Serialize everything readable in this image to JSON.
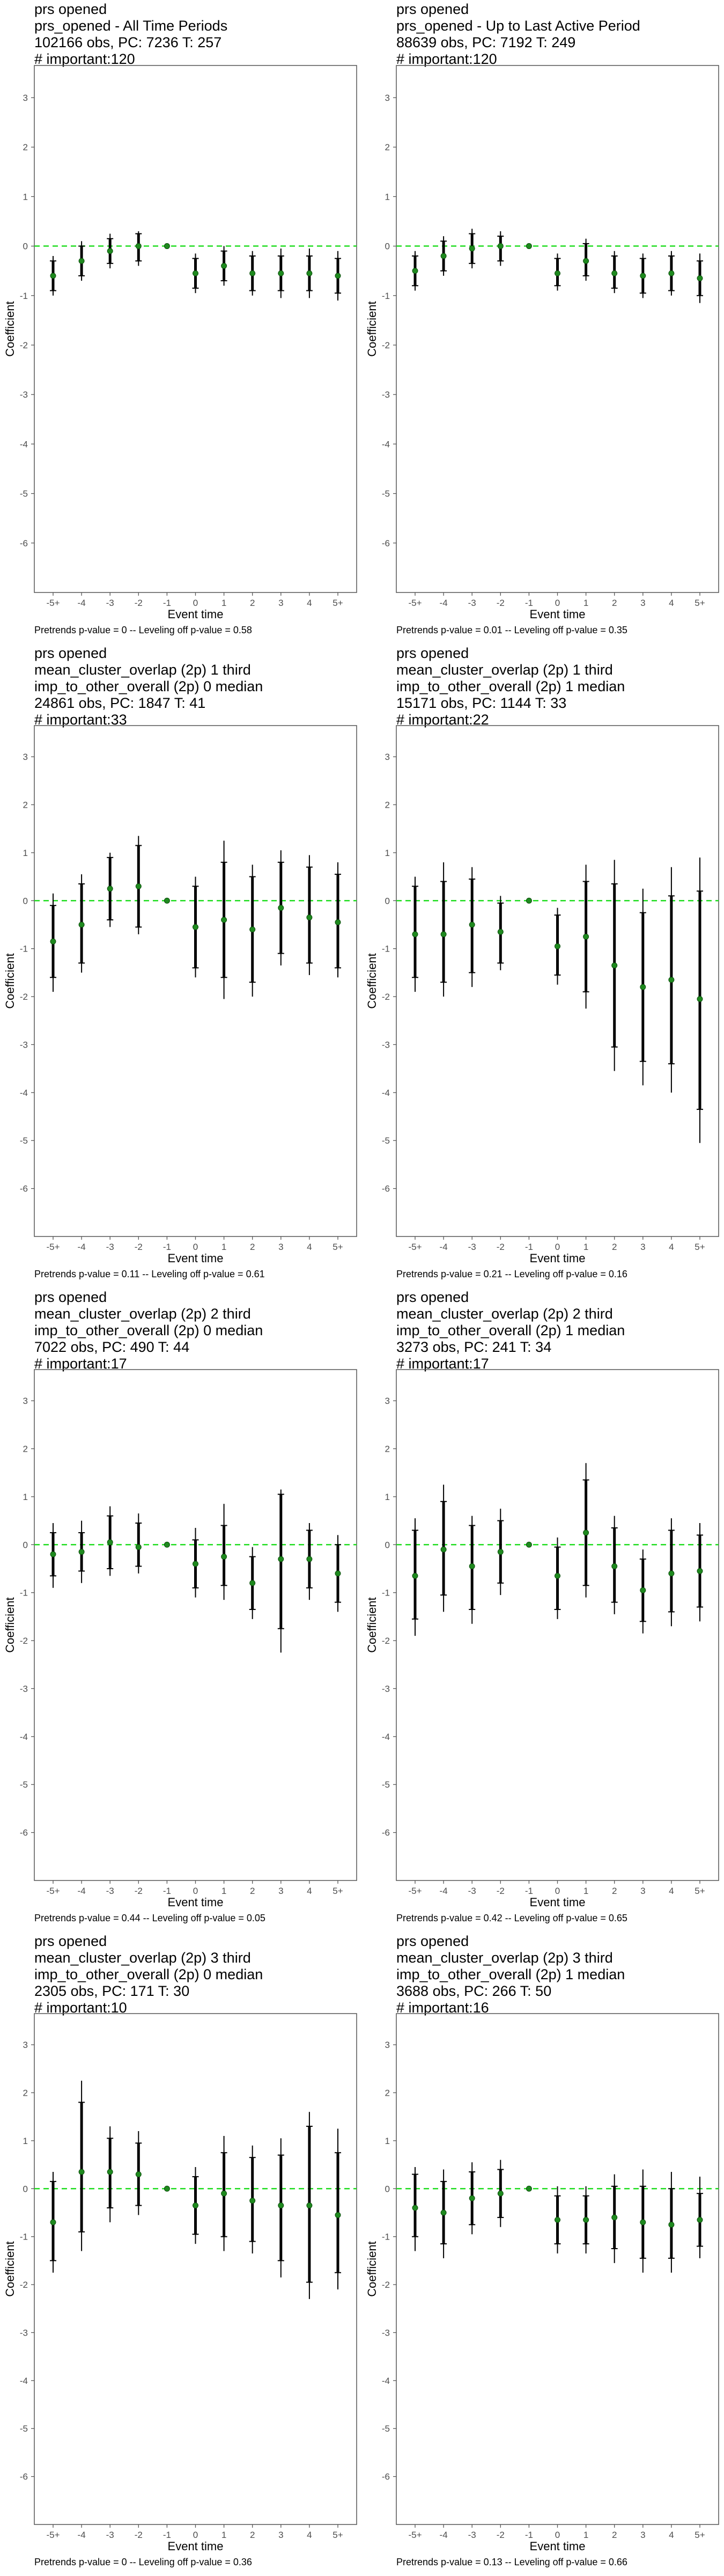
{
  "chart_data": [
    {
      "type": "scatter",
      "titles": [
        "prs opened",
        "prs_opened - All Time Periods",
        "102166 obs, PC: 7236 T: 257",
        "# important:120"
      ],
      "footer": "Pretrends p-value = 0 -- Leveling off p-value = 0.58",
      "xlabel": "Event time",
      "ylabel": "Coefficient",
      "categories": [
        "-5+",
        "-4",
        "-3",
        "-2",
        "-1",
        "0",
        "1",
        "2",
        "3",
        "4",
        "5+"
      ],
      "yticks": [
        -6,
        -5,
        -4,
        -3,
        -2,
        -1,
        0,
        1,
        2,
        3
      ],
      "ylim": [
        -7,
        3.65
      ],
      "estimate": [
        -0.6,
        -0.3,
        -0.1,
        0.0,
        0.0,
        -0.55,
        -0.4,
        -0.55,
        -0.55,
        -0.55,
        -0.6
      ],
      "ci90": [
        [
          -0.9,
          -0.3
        ],
        [
          -0.6,
          0.0
        ],
        [
          -0.35,
          0.15
        ],
        [
          -0.3,
          0.25
        ],
        null,
        [
          -0.85,
          -0.25
        ],
        [
          -0.7,
          -0.1
        ],
        [
          -0.9,
          -0.2
        ],
        [
          -0.9,
          -0.2
        ],
        [
          -0.9,
          -0.2
        ],
        [
          -0.95,
          -0.25
        ]
      ],
      "ci95": [
        [
          -1.0,
          -0.2
        ],
        [
          -0.7,
          0.1
        ],
        [
          -0.45,
          0.25
        ],
        [
          -0.4,
          0.3
        ],
        null,
        [
          -0.95,
          -0.15
        ],
        [
          -0.8,
          0.0
        ],
        [
          -1.0,
          -0.1
        ],
        [
          -1.05,
          -0.05
        ],
        [
          -1.05,
          -0.05
        ],
        [
          -1.1,
          -0.1
        ]
      ]
    },
    {
      "type": "scatter",
      "titles": [
        "prs opened",
        "prs_opened - Up to Last Active Period",
        "88639 obs, PC: 7192 T: 249",
        "# important:120"
      ],
      "footer": "Pretrends p-value = 0.01 -- Leveling off p-value = 0.35",
      "xlabel": "Event time",
      "ylabel": "Coefficient",
      "categories": [
        "-5+",
        "-4",
        "-3",
        "-2",
        "-1",
        "0",
        "1",
        "2",
        "3",
        "4",
        "5+"
      ],
      "yticks": [
        -6,
        -5,
        -4,
        -3,
        -2,
        -1,
        0,
        1,
        2,
        3
      ],
      "ylim": [
        -7,
        3.65
      ],
      "estimate": [
        -0.5,
        -0.2,
        -0.05,
        0.0,
        0.0,
        -0.55,
        -0.3,
        -0.55,
        -0.6,
        -0.55,
        -0.65
      ],
      "ci90": [
        [
          -0.8,
          -0.2
        ],
        [
          -0.5,
          0.1
        ],
        [
          -0.35,
          0.25
        ],
        [
          -0.3,
          0.2
        ],
        null,
        [
          -0.8,
          -0.25
        ],
        [
          -0.6,
          0.05
        ],
        [
          -0.85,
          -0.2
        ],
        [
          -0.95,
          -0.25
        ],
        [
          -0.9,
          -0.2
        ],
        [
          -1.0,
          -0.3
        ]
      ],
      "ci95": [
        [
          -0.9,
          -0.1
        ],
        [
          -0.6,
          0.2
        ],
        [
          -0.45,
          0.35
        ],
        [
          -0.4,
          0.3
        ],
        null,
        [
          -0.9,
          -0.15
        ],
        [
          -0.7,
          0.15
        ],
        [
          -0.95,
          -0.1
        ],
        [
          -1.05,
          -0.15
        ],
        [
          -1.0,
          -0.1
        ],
        [
          -1.15,
          -0.15
        ]
      ]
    },
    {
      "type": "scatter",
      "titles": [
        "prs opened",
        "mean_cluster_overlap (2p) 1 third",
        "imp_to_other_overall (2p) 0 median",
        "24861 obs, PC: 1847 T: 41",
        "# important:33"
      ],
      "footer": "Pretrends p-value = 0.11 -- Leveling off p-value = 0.61",
      "xlabel": "Event time",
      "ylabel": "Coefficient",
      "categories": [
        "-5+",
        "-4",
        "-3",
        "-2",
        "-1",
        "0",
        "1",
        "2",
        "3",
        "4",
        "5+"
      ],
      "yticks": [
        -6,
        -5,
        -4,
        -3,
        -2,
        -1,
        0,
        1,
        2,
        3
      ],
      "ylim": [
        -7,
        3.65
      ],
      "estimate": [
        -0.85,
        -0.5,
        0.25,
        0.3,
        0.0,
        -0.55,
        -0.4,
        -0.6,
        -0.15,
        -0.35,
        -0.45
      ],
      "ci90": [
        [
          -1.6,
          -0.1
        ],
        [
          -1.3,
          0.35
        ],
        [
          -0.4,
          0.9
        ],
        [
          -0.55,
          1.15
        ],
        null,
        [
          -1.4,
          0.3
        ],
        [
          -1.6,
          0.8
        ],
        [
          -1.7,
          0.5
        ],
        [
          -1.1,
          0.8
        ],
        [
          -1.3,
          0.7
        ],
        [
          -1.4,
          0.55
        ]
      ],
      "ci95": [
        [
          -1.9,
          0.15
        ],
        [
          -1.5,
          0.55
        ],
        [
          -0.55,
          1.0
        ],
        [
          -0.7,
          1.35
        ],
        null,
        [
          -1.6,
          0.5
        ],
        [
          -2.05,
          1.25
        ],
        [
          -2.0,
          0.75
        ],
        [
          -1.35,
          1.05
        ],
        [
          -1.55,
          0.95
        ],
        [
          -1.6,
          0.8
        ]
      ]
    },
    {
      "type": "scatter",
      "titles": [
        "prs opened",
        "mean_cluster_overlap (2p) 1 third",
        "imp_to_other_overall (2p) 1 median",
        "15171 obs, PC: 1144 T: 33",
        "# important:22"
      ],
      "footer": "Pretrends p-value = 0.21 -- Leveling off p-value = 0.16",
      "xlabel": "Event time",
      "ylabel": "Coefficient",
      "categories": [
        "-5+",
        "-4",
        "-3",
        "-2",
        "-1",
        "0",
        "1",
        "2",
        "3",
        "4",
        "5+"
      ],
      "yticks": [
        -6,
        -5,
        -4,
        -3,
        -2,
        -1,
        0,
        1,
        2,
        3
      ],
      "ylim": [
        -7,
        3.65
      ],
      "estimate": [
        -0.7,
        -0.7,
        -0.5,
        -0.65,
        0.0,
        -0.95,
        -0.75,
        -1.35,
        -1.8,
        -1.65,
        -2.05
      ],
      "ci90": [
        [
          -1.6,
          0.3
        ],
        [
          -1.7,
          0.4
        ],
        [
          -1.5,
          0.45
        ],
        [
          -1.3,
          -0.05
        ],
        null,
        [
          -1.55,
          -0.3
        ],
        [
          -1.9,
          0.4
        ],
        [
          -3.05,
          0.35
        ],
        [
          -3.35,
          -0.25
        ],
        [
          -3.4,
          0.1
        ],
        [
          -4.35,
          0.2
        ]
      ],
      "ci95": [
        [
          -1.9,
          0.5
        ],
        [
          -2.0,
          0.8
        ],
        [
          -1.8,
          0.7
        ],
        [
          -1.45,
          0.1
        ],
        null,
        [
          -1.75,
          -0.15
        ],
        [
          -2.25,
          0.75
        ],
        [
          -3.55,
          0.85
        ],
        [
          -3.85,
          0.25
        ],
        [
          -4.0,
          0.7
        ],
        [
          -5.05,
          0.9
        ]
      ]
    },
    {
      "type": "scatter",
      "titles": [
        "prs opened",
        "mean_cluster_overlap (2p) 2 third",
        "imp_to_other_overall (2p) 0 median",
        "7022 obs, PC: 490 T: 44",
        "# important:17"
      ],
      "footer": "Pretrends p-value = 0.44 -- Leveling off p-value = 0.05",
      "xlabel": "Event time",
      "ylabel": "Coefficient",
      "categories": [
        "-5+",
        "-4",
        "-3",
        "-2",
        "-1",
        "0",
        "1",
        "2",
        "3",
        "4",
        "5+"
      ],
      "yticks": [
        -6,
        -5,
        -4,
        -3,
        -2,
        -1,
        0,
        1,
        2,
        3
      ],
      "ylim": [
        -7,
        3.65
      ],
      "estimate": [
        -0.2,
        -0.15,
        0.05,
        -0.05,
        0.0,
        -0.4,
        -0.25,
        -0.8,
        -0.3,
        -0.3,
        -0.6
      ],
      "ci90": [
        [
          -0.65,
          0.25
        ],
        [
          -0.55,
          0.25
        ],
        [
          -0.5,
          0.6
        ],
        [
          -0.45,
          0.45
        ],
        null,
        [
          -0.9,
          0.1
        ],
        [
          -0.85,
          0.4
        ],
        [
          -1.35,
          -0.25
        ],
        [
          -1.75,
          1.05
        ],
        [
          -0.9,
          0.3
        ],
        [
          -1.2,
          0.0
        ]
      ],
      "ci95": [
        [
          -0.9,
          0.45
        ],
        [
          -0.8,
          0.5
        ],
        [
          -0.65,
          0.8
        ],
        [
          -0.6,
          0.65
        ],
        null,
        [
          -1.1,
          0.35
        ],
        [
          -1.15,
          0.85
        ],
        [
          -1.55,
          -0.05
        ],
        [
          -2.25,
          1.15
        ],
        [
          -1.15,
          0.45
        ],
        [
          -1.4,
          0.2
        ]
      ]
    },
    {
      "type": "scatter",
      "titles": [
        "prs opened",
        "mean_cluster_overlap (2p) 2 third",
        "imp_to_other_overall (2p) 1 median",
        "3273 obs, PC: 241 T: 34",
        "# important:17"
      ],
      "footer": "Pretrends p-value = 0.42 -- Leveling off p-value = 0.65",
      "xlabel": "Event time",
      "ylabel": "Coefficient",
      "categories": [
        "-5+",
        "-4",
        "-3",
        "-2",
        "-1",
        "0",
        "1",
        "2",
        "3",
        "4",
        "5+"
      ],
      "yticks": [
        -6,
        -5,
        -4,
        -3,
        -2,
        -1,
        0,
        1,
        2,
        3
      ],
      "ylim": [
        -7,
        3.65
      ],
      "estimate": [
        -0.65,
        -0.1,
        -0.45,
        -0.15,
        0.0,
        -0.65,
        0.25,
        -0.45,
        -0.95,
        -0.6,
        -0.55
      ],
      "ci90": [
        [
          -1.55,
          0.3
        ],
        [
          -1.05,
          0.9
        ],
        [
          -1.35,
          0.4
        ],
        [
          -0.8,
          0.5
        ],
        null,
        [
          -1.35,
          -0.05
        ],
        [
          -0.85,
          1.35
        ],
        [
          -1.2,
          0.35
        ],
        [
          -1.6,
          -0.3
        ],
        [
          -1.4,
          0.3
        ],
        [
          -1.3,
          0.2
        ]
      ],
      "ci95": [
        [
          -1.9,
          0.55
        ],
        [
          -1.4,
          1.25
        ],
        [
          -1.65,
          0.6
        ],
        [
          -1.05,
          0.75
        ],
        null,
        [
          -1.55,
          0.15
        ],
        [
          -1.1,
          1.7
        ],
        [
          -1.45,
          0.6
        ],
        [
          -1.85,
          -0.1
        ],
        [
          -1.7,
          0.55
        ],
        [
          -1.6,
          0.45
        ]
      ]
    },
    {
      "type": "scatter",
      "titles": [
        "prs opened",
        "mean_cluster_overlap (2p) 3 third",
        "imp_to_other_overall (2p) 0 median",
        "2305 obs, PC: 171 T: 30",
        "# important:10"
      ],
      "footer": "Pretrends p-value = 0 -- Leveling off p-value = 0.36",
      "xlabel": "Event time",
      "ylabel": "Coefficient",
      "categories": [
        "-5+",
        "-4",
        "-3",
        "-2",
        "-1",
        "0",
        "1",
        "2",
        "3",
        "4",
        "5+"
      ],
      "yticks": [
        -6,
        -5,
        -4,
        -3,
        -2,
        -1,
        0,
        1,
        2,
        3
      ],
      "ylim": [
        -7,
        3.65
      ],
      "estimate": [
        -0.7,
        0.35,
        0.35,
        0.3,
        0.0,
        -0.35,
        -0.1,
        -0.25,
        -0.35,
        -0.35,
        -0.55
      ],
      "ci90": [
        [
          -1.5,
          0.15
        ],
        [
          -0.9,
          1.8
        ],
        [
          -0.4,
          1.05
        ],
        [
          -0.35,
          0.95
        ],
        null,
        [
          -0.95,
          0.25
        ],
        [
          -1.0,
          0.75
        ],
        [
          -1.1,
          0.65
        ],
        [
          -1.5,
          0.7
        ],
        [
          -1.95,
          1.3
        ],
        [
          -1.75,
          0.75
        ]
      ],
      "ci95": [
        [
          -1.75,
          0.35
        ],
        [
          -1.3,
          2.25
        ],
        [
          -0.7,
          1.3
        ],
        [
          -0.55,
          1.2
        ],
        null,
        [
          -1.15,
          0.45
        ],
        [
          -1.3,
          1.1
        ],
        [
          -1.35,
          0.9
        ],
        [
          -1.85,
          1.05
        ],
        [
          -2.3,
          1.6
        ],
        [
          -2.1,
          1.25
        ]
      ]
    },
    {
      "type": "scatter",
      "titles": [
        "prs opened",
        "mean_cluster_overlap (2p) 3 third",
        "imp_to_other_overall (2p) 1 median",
        "3688 obs, PC: 266 T: 50",
        "# important:16"
      ],
      "footer": "Pretrends p-value = 0.13 -- Leveling off p-value = 0.66",
      "xlabel": "Event time",
      "ylabel": "Coefficient",
      "categories": [
        "-5+",
        "-4",
        "-3",
        "-2",
        "-1",
        "0",
        "1",
        "2",
        "3",
        "4",
        "5+"
      ],
      "yticks": [
        -6,
        -5,
        -4,
        -3,
        -2,
        -1,
        0,
        1,
        2,
        3
      ],
      "ylim": [
        -7,
        3.65
      ],
      "estimate": [
        -0.4,
        -0.5,
        -0.2,
        -0.1,
        0.0,
        -0.65,
        -0.65,
        -0.6,
        -0.7,
        -0.75,
        -0.65
      ],
      "ci90": [
        [
          -1.0,
          0.3
        ],
        [
          -1.15,
          0.15
        ],
        [
          -0.75,
          0.35
        ],
        [
          -0.6,
          0.4
        ],
        null,
        [
          -1.15,
          -0.15
        ],
        [
          -1.15,
          -0.15
        ],
        [
          -1.25,
          0.05
        ],
        [
          -1.45,
          0.05
        ],
        [
          -1.45,
          0.0
        ],
        [
          -1.2,
          -0.1
        ]
      ],
      "ci95": [
        [
          -1.3,
          0.45
        ],
        [
          -1.45,
          0.4
        ],
        [
          -0.95,
          0.55
        ],
        [
          -0.8,
          0.6
        ],
        null,
        [
          -1.35,
          0.05
        ],
        [
          -1.35,
          0.05
        ],
        [
          -1.55,
          0.3
        ],
        [
          -1.75,
          0.4
        ],
        [
          -1.75,
          0.35
        ],
        [
          -1.45,
          0.25
        ]
      ]
    }
  ],
  "colors": {
    "zero_line": "#22dd22",
    "point": "#1f8a1f",
    "bar": "#000000",
    "axis": "#555555",
    "tick_text": "#4d4d4d"
  }
}
